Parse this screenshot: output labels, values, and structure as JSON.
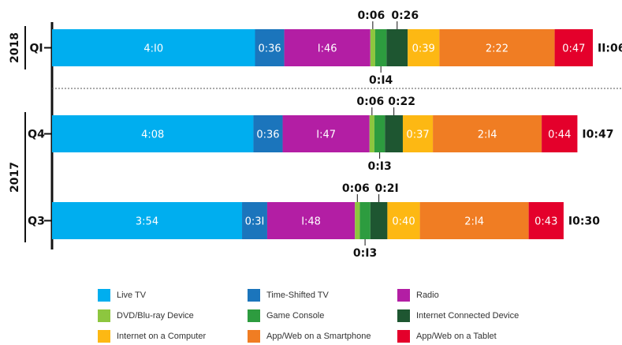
{
  "chart_data": {
    "type": "bar",
    "orientation": "horizontal",
    "stacked": true,
    "legend_position": "bottom",
    "groups": [
      {
        "year": "2018",
        "rows": [
          "Q1"
        ]
      },
      {
        "year": "2017",
        "rows": [
          "Q4",
          "Q3"
        ]
      }
    ],
    "series": [
      {
        "name": "Live TV",
        "color": "#00aeef"
      },
      {
        "name": "Time-Shifted TV",
        "color": "#1b75bc"
      },
      {
        "name": "Radio",
        "color": "#b31ea4"
      },
      {
        "name": "DVD/Blu-ray Device",
        "color": "#8dc63f"
      },
      {
        "name": "Game Console",
        "color": "#2d9c3f"
      },
      {
        "name": "Internet Connected Device",
        "color": "#1e5631"
      },
      {
        "name": "Internet on a Computer",
        "color": "#fdb813"
      },
      {
        "name": "App/Web on a Smartphone",
        "color": "#f07d23"
      },
      {
        "name": "App/Web on a Tablet",
        "color": "#e4002b"
      }
    ],
    "bars": [
      {
        "quarter": "Q1",
        "year": "2018",
        "total": "11:06",
        "values": [
          "4:10",
          "0:36",
          "1:46",
          "0:06",
          "0:14",
          "0:26",
          "0:39",
          "2:22",
          "0:47"
        ]
      },
      {
        "quarter": "Q4",
        "year": "2017",
        "total": "10:47",
        "values": [
          "4:08",
          "0:36",
          "1:47",
          "0:06",
          "0:13",
          "0:22",
          "0:37",
          "2:14",
          "0:44"
        ]
      },
      {
        "quarter": "Q3",
        "year": "2017",
        "total": "10:30",
        "values": [
          "3:54",
          "0:31",
          "1:48",
          "0:06",
          "0:13",
          "0:21",
          "0:40",
          "2:14",
          "0:43"
        ]
      }
    ],
    "gridlines": false
  }
}
